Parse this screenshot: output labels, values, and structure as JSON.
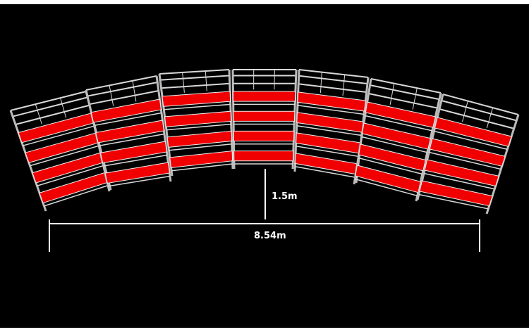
{
  "dimensions": {
    "height_label": "1.5m",
    "width_label": "8.54m"
  },
  "structure": {
    "sections": 7,
    "seat_rows_per_section": 4,
    "seat_color": "#f00000",
    "frame_color": "#d8d8d8",
    "background_color": "#000000"
  }
}
